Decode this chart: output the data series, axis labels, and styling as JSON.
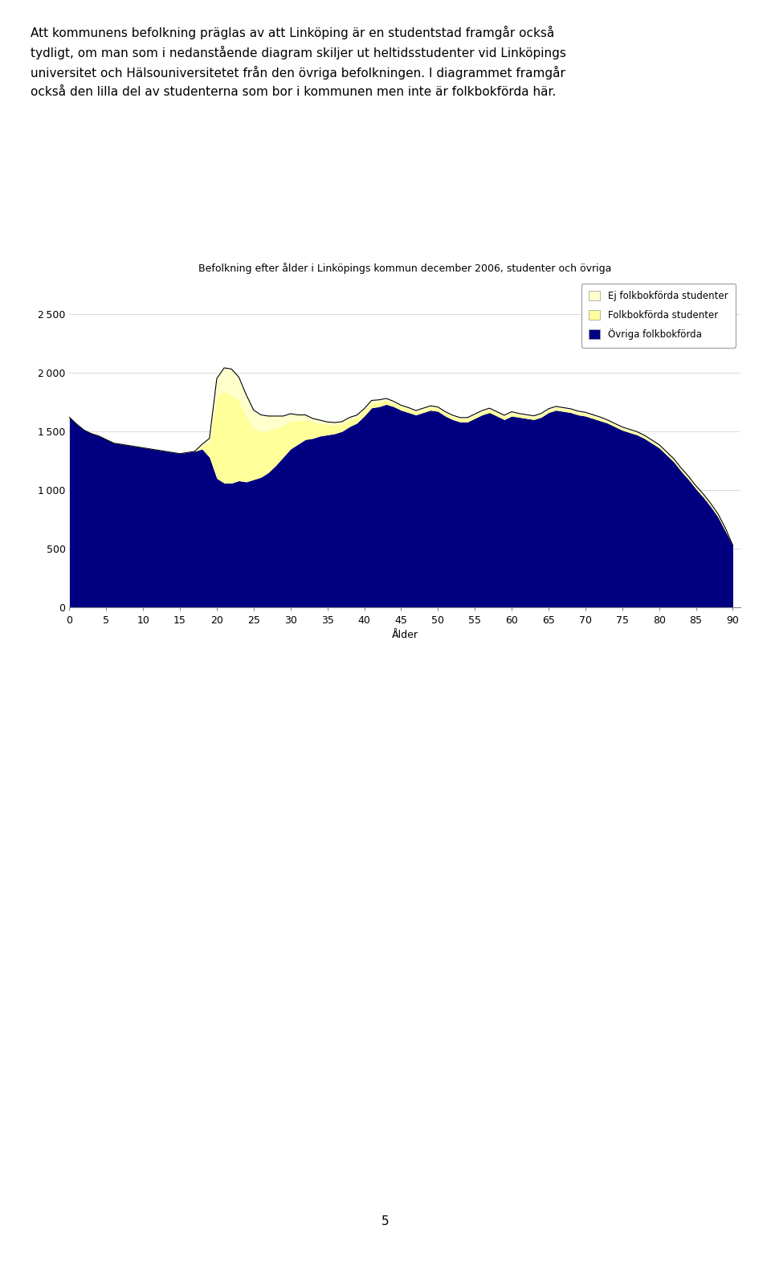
{
  "title": "Befolkning efter ålder i Linköpings kommun december 2006, studenter och övriga",
  "xlabel": "Ålder",
  "ylabel": "",
  "xlim": [
    0,
    91
  ],
  "ylim": [
    0,
    2800
  ],
  "yticks": [
    0,
    500,
    1000,
    1500,
    2000,
    2500
  ],
  "xticks": [
    0,
    5,
    10,
    15,
    20,
    25,
    30,
    35,
    40,
    45,
    50,
    55,
    60,
    65,
    70,
    75,
    80,
    85,
    90
  ],
  "legend_labels": [
    "Ej folkbokförda studenter",
    "Folkbokförda studenter",
    "Övriga folkbokförda"
  ],
  "legend_colors": [
    "#ffffcc",
    "#ffff99",
    "#000080"
  ],
  "ovriga_color": "#000080",
  "folkbokforda_studenter_color": "#ffff99",
  "ej_folkbokforda_color": "#ffffcc",
  "ages": [
    0,
    1,
    2,
    3,
    4,
    5,
    6,
    7,
    8,
    9,
    10,
    11,
    12,
    13,
    14,
    15,
    16,
    17,
    18,
    19,
    20,
    21,
    22,
    23,
    24,
    25,
    26,
    27,
    28,
    29,
    30,
    31,
    32,
    33,
    34,
    35,
    36,
    37,
    38,
    39,
    40,
    41,
    42,
    43,
    44,
    45,
    46,
    47,
    48,
    49,
    50,
    51,
    52,
    53,
    54,
    55,
    56,
    57,
    58,
    59,
    60,
    61,
    62,
    63,
    64,
    65,
    66,
    67,
    68,
    69,
    70,
    71,
    72,
    73,
    74,
    75,
    76,
    77,
    78,
    79,
    80,
    81,
    82,
    83,
    84,
    85,
    86,
    87,
    88,
    89,
    90
  ],
  "ovriga": [
    1620,
    1560,
    1510,
    1480,
    1460,
    1430,
    1400,
    1390,
    1380,
    1370,
    1360,
    1350,
    1340,
    1330,
    1320,
    1310,
    1320,
    1330,
    1350,
    1280,
    1100,
    1060,
    1060,
    1080,
    1070,
    1090,
    1110,
    1150,
    1210,
    1280,
    1350,
    1390,
    1430,
    1440,
    1460,
    1470,
    1480,
    1500,
    1540,
    1570,
    1630,
    1700,
    1710,
    1730,
    1710,
    1680,
    1660,
    1640,
    1660,
    1680,
    1670,
    1630,
    1600,
    1580,
    1580,
    1610,
    1640,
    1660,
    1630,
    1600,
    1630,
    1620,
    1610,
    1600,
    1620,
    1660,
    1680,
    1670,
    1660,
    1640,
    1630,
    1610,
    1590,
    1570,
    1540,
    1510,
    1490,
    1470,
    1440,
    1400,
    1360,
    1300,
    1240,
    1160,
    1090,
    1010,
    940,
    860,
    770,
    650,
    530
  ],
  "folkbokforda_studenter": [
    0,
    0,
    0,
    0,
    0,
    0,
    0,
    0,
    0,
    0,
    0,
    0,
    0,
    0,
    0,
    0,
    0,
    0,
    30,
    120,
    700,
    780,
    750,
    680,
    560,
    430,
    390,
    360,
    320,
    270,
    240,
    200,
    170,
    140,
    110,
    90,
    75,
    65,
    60,
    50,
    45,
    45,
    40,
    35,
    30,
    30,
    30,
    25,
    25,
    25,
    25,
    25,
    25,
    25,
    25,
    25,
    25,
    25,
    25,
    25,
    25,
    20,
    20,
    20,
    20,
    20,
    20,
    20,
    20,
    20,
    20,
    20,
    20,
    15,
    15,
    15,
    15,
    15,
    15,
    15,
    15,
    15,
    15,
    15,
    15,
    15,
    15,
    15,
    15,
    15,
    0
  ],
  "ej_folkbokforda": [
    0,
    0,
    0,
    0,
    0,
    0,
    0,
    0,
    0,
    0,
    0,
    0,
    0,
    0,
    0,
    0,
    0,
    0,
    10,
    40,
    150,
    200,
    220,
    200,
    180,
    160,
    140,
    120,
    100,
    80,
    60,
    50,
    40,
    30,
    25,
    20,
    20,
    18,
    18,
    18,
    18,
    18,
    18,
    15,
    15,
    12,
    12,
    12,
    12,
    12,
    12,
    12,
    12,
    12,
    12,
    12,
    12,
    12,
    12,
    12,
    12,
    12,
    12,
    12,
    12,
    12,
    12,
    12,
    12,
    12,
    12,
    12,
    12,
    12,
    12,
    12,
    12,
    12,
    12,
    12,
    12,
    12,
    12,
    12,
    12,
    12,
    12,
    12,
    12,
    12,
    0
  ],
  "text_prefix": "Att kommunens befolkning präglas av att Linköping är en studentstad framgår också\ntydligt, om man som i nedanstående diagram skiljer ut heltidsstudenter vid Linköpings\nuniversitet och Hälsouniversitetet från den övriga befolkningen. I diagrammet framgår\nockså den lilla del av studenterna som bor i kommunen men inte är folkbokförda här.",
  "page_number": "5",
  "figsize_chart": [
    7.2,
    4.0
  ],
  "background_color": "#ffffff"
}
